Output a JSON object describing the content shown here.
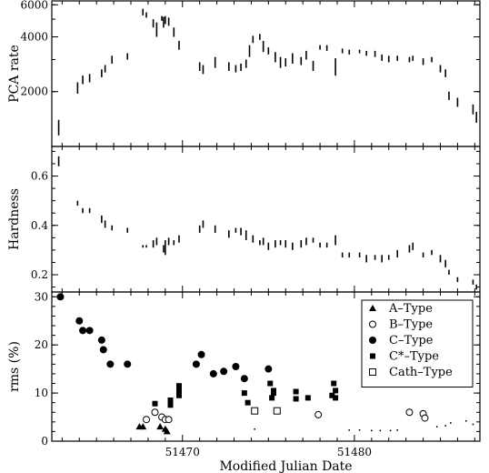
{
  "chart_data": [
    {
      "type": "scatter",
      "panel": "top",
      "ylabel": "PCA rate",
      "ylim": [
        1000,
        6300
      ],
      "yscale": "log",
      "yticks": [
        {
          "value": 2000,
          "label": "2000"
        },
        {
          "value": 4000,
          "label": "4000"
        },
        {
          "value": 6000,
          "label": "6000"
        }
      ],
      "xlim": [
        51462.4,
        51487.3
      ],
      "series": [
        {
          "marker": "vertical-segment",
          "segments": [
            [
              51462.8,
              1150,
              1400
            ],
            [
              51463.9,
              1950,
              2250
            ],
            [
              51464.2,
              2200,
              2450
            ],
            [
              51464.6,
              2250,
              2500
            ],
            [
              51465.3,
              2400,
              2650
            ],
            [
              51465.5,
              2550,
              2800
            ],
            [
              51465.9,
              2850,
              3150
            ],
            [
              51466.8,
              3000,
              3250
            ],
            [
              51467.7,
              5250,
              5700
            ],
            [
              51467.9,
              5100,
              5450
            ],
            [
              51468.3,
              4500,
              5000
            ],
            [
              51468.5,
              4000,
              4800
            ],
            [
              51468.8,
              4900,
              5200
            ],
            [
              51468.9,
              4500,
              5150
            ],
            [
              51469.0,
              4700,
              5200
            ],
            [
              51469.2,
              4600,
              5100
            ],
            [
              51469.5,
              4000,
              4500
            ],
            [
              51469.8,
              3400,
              3800
            ],
            [
              51471.0,
              2600,
              2900
            ],
            [
              51471.2,
              2500,
              2800
            ],
            [
              51471.9,
              2700,
              3100
            ],
            [
              51472.7,
              2600,
              2900
            ],
            [
              51473.1,
              2550,
              2800
            ],
            [
              51473.4,
              2600,
              2850
            ],
            [
              51473.7,
              2700,
              3000
            ],
            [
              51473.9,
              3100,
              3600
            ],
            [
              51474.1,
              3700,
              4050
            ],
            [
              51474.5,
              3850,
              4150
            ],
            [
              51474.7,
              3300,
              3800
            ],
            [
              51475.0,
              3200,
              3500
            ],
            [
              51475.4,
              2900,
              3300
            ],
            [
              51475.7,
              2700,
              3100
            ],
            [
              51476.0,
              2750,
              3050
            ],
            [
              51476.4,
              2850,
              3250
            ],
            [
              51476.9,
              2800,
              3100
            ],
            [
              51477.2,
              3000,
              3350
            ],
            [
              51477.6,
              2600,
              2950
            ],
            [
              51478.0,
              3400,
              3600
            ],
            [
              51478.4,
              3350,
              3600
            ],
            [
              51478.9,
              2450,
              3050
            ],
            [
              51479.3,
              3250,
              3450
            ],
            [
              51479.7,
              3200,
              3400
            ],
            [
              51480.3,
              3250,
              3400
            ],
            [
              51480.7,
              3150,
              3350
            ],
            [
              51481.2,
              3100,
              3350
            ],
            [
              51481.6,
              2950,
              3200
            ],
            [
              51482.0,
              2900,
              3150
            ],
            [
              51482.5,
              2950,
              3150
            ],
            [
              51483.2,
              2900,
              3100
            ],
            [
              51483.4,
              2950,
              3150
            ],
            [
              51484.0,
              2800,
              3050
            ],
            [
              51484.5,
              2900,
              3100
            ],
            [
              51485.0,
              2550,
              2800
            ],
            [
              51485.3,
              2400,
              2650
            ],
            [
              51485.5,
              1800,
              2000
            ],
            [
              51486.0,
              1650,
              1850
            ],
            [
              51486.9,
              1500,
              1700
            ],
            [
              51487.1,
              1350,
              1550
            ]
          ]
        }
      ]
    },
    {
      "type": "scatter",
      "panel": "middle",
      "ylabel": "Hardness",
      "ylim": [
        0.13,
        0.72
      ],
      "yticks": [
        {
          "value": 0.2,
          "label": "0.2"
        },
        {
          "value": 0.4,
          "label": "0.4"
        },
        {
          "value": 0.6,
          "label": "0.6"
        }
      ],
      "xlim": [
        51462.4,
        51487.3
      ],
      "series": [
        {
          "marker": "vertical-segment",
          "segments": [
            [
              51462.8,
              0.64,
              0.68
            ],
            [
              51463.9,
              0.48,
              0.5
            ],
            [
              51464.2,
              0.45,
              0.47
            ],
            [
              51464.6,
              0.45,
              0.47
            ],
            [
              51465.3,
              0.41,
              0.44
            ],
            [
              51465.5,
              0.39,
              0.42
            ],
            [
              51465.9,
              0.38,
              0.4
            ],
            [
              51466.8,
              0.37,
              0.39
            ],
            [
              51467.7,
              0.31,
              0.32
            ],
            [
              51467.9,
              0.31,
              0.32
            ],
            [
              51468.3,
              0.31,
              0.34
            ],
            [
              51468.5,
              0.32,
              0.35
            ],
            [
              51468.9,
              0.29,
              0.32
            ],
            [
              51469.0,
              0.28,
              0.34
            ],
            [
              51469.2,
              0.32,
              0.35
            ],
            [
              51469.5,
              0.32,
              0.34
            ],
            [
              51469.8,
              0.33,
              0.36
            ],
            [
              51471.0,
              0.37,
              0.4
            ],
            [
              51471.2,
              0.39,
              0.42
            ],
            [
              51471.9,
              0.37,
              0.4
            ],
            [
              51472.7,
              0.35,
              0.38
            ],
            [
              51473.1,
              0.37,
              0.39
            ],
            [
              51473.4,
              0.36,
              0.39
            ],
            [
              51473.7,
              0.34,
              0.38
            ],
            [
              51474.1,
              0.33,
              0.36
            ],
            [
              51474.5,
              0.32,
              0.34
            ],
            [
              51474.7,
              0.32,
              0.35
            ],
            [
              51475.0,
              0.3,
              0.33
            ],
            [
              51475.4,
              0.31,
              0.34
            ],
            [
              51475.7,
              0.32,
              0.34
            ],
            [
              51476.0,
              0.31,
              0.34
            ],
            [
              51476.4,
              0.3,
              0.33
            ],
            [
              51476.9,
              0.31,
              0.34
            ],
            [
              51477.2,
              0.32,
              0.35
            ],
            [
              51477.6,
              0.33,
              0.35
            ],
            [
              51478.0,
              0.31,
              0.33
            ],
            [
              51478.4,
              0.31,
              0.33
            ],
            [
              51478.9,
              0.32,
              0.36
            ],
            [
              51479.3,
              0.27,
              0.29
            ],
            [
              51479.7,
              0.27,
              0.29
            ],
            [
              51480.3,
              0.27,
              0.29
            ],
            [
              51480.7,
              0.25,
              0.28
            ],
            [
              51481.2,
              0.26,
              0.28
            ],
            [
              51481.6,
              0.25,
              0.28
            ],
            [
              51482.0,
              0.26,
              0.28
            ],
            [
              51482.5,
              0.27,
              0.3
            ],
            [
              51483.2,
              0.29,
              0.32
            ],
            [
              51483.4,
              0.3,
              0.33
            ],
            [
              51484.0,
              0.27,
              0.29
            ],
            [
              51484.5,
              0.28,
              0.3
            ],
            [
              51485.0,
              0.25,
              0.28
            ],
            [
              51485.3,
              0.23,
              0.26
            ],
            [
              51485.5,
              0.2,
              0.22
            ],
            [
              51486.0,
              0.17,
              0.19
            ],
            [
              51486.9,
              0.16,
              0.18
            ],
            [
              51487.1,
              0.14,
              0.16
            ]
          ]
        }
      ]
    },
    {
      "type": "scatter",
      "panel": "bottom",
      "ylabel": "rms (%)",
      "xlabel": "Modified Julian Date",
      "ylim": [
        0,
        31
      ],
      "yticks": [
        {
          "value": 0,
          "label": "0"
        },
        {
          "value": 10,
          "label": "10"
        },
        {
          "value": 20,
          "label": "20"
        },
        {
          "value": 30,
          "label": "30"
        }
      ],
      "xlim": [
        51462.4,
        51487.3
      ],
      "xticks": [
        {
          "value": 51470,
          "label": "51470"
        },
        {
          "value": 51480,
          "label": "51480"
        }
      ],
      "legend": "top-right",
      "series": [
        {
          "name": "A–Type",
          "marker": "triangle-filled",
          "points": [
            [
              51467.5,
              3.0
            ],
            [
              51467.7,
              3.0
            ],
            [
              51468.7,
              3.0
            ],
            [
              51469.0,
              2.5
            ],
            [
              51469.1,
              2.0
            ]
          ]
        },
        {
          "name": "B–Type",
          "marker": "circle-open",
          "points": [
            [
              51467.9,
              4.5
            ],
            [
              51468.4,
              6.0
            ],
            [
              51468.8,
              5.0
            ],
            [
              51469.0,
              4.5
            ],
            [
              51469.2,
              4.5
            ],
            [
              51477.9,
              5.5
            ],
            [
              51483.2,
              6.0
            ],
            [
              51484.0,
              5.7
            ],
            [
              51484.1,
              4.8
            ]
          ]
        },
        {
          "name": "C–Type",
          "marker": "circle-filled",
          "points": [
            [
              51462.9,
              30.0
            ],
            [
              51464.0,
              25.0
            ],
            [
              51464.2,
              23.0
            ],
            [
              51464.6,
              23.0
            ],
            [
              51465.3,
              21.0
            ],
            [
              51465.4,
              19.0
            ],
            [
              51465.8,
              16.0
            ],
            [
              51466.8,
              16.0
            ],
            [
              51470.8,
              16.0
            ],
            [
              51471.1,
              18.0
            ],
            [
              51471.8,
              14.0
            ],
            [
              51472.4,
              14.5
            ],
            [
              51473.1,
              15.5
            ],
            [
              51473.6,
              13.0
            ],
            [
              51475.0,
              15.0
            ]
          ]
        },
        {
          "name": "C*–Type",
          "marker": "square-filled",
          "points": [
            [
              51468.4,
              7.8
            ],
            [
              51469.3,
              7.5
            ],
            [
              51469.3,
              8.5
            ],
            [
              51469.8,
              9.5
            ],
            [
              51469.8,
              11.5
            ],
            [
              51469.8,
              10.5
            ],
            [
              51473.6,
              10.0
            ],
            [
              51473.8,
              8.0
            ],
            [
              51475.1,
              12.0
            ],
            [
              51475.3,
              10.5
            ],
            [
              51475.3,
              10.0
            ],
            [
              51475.2,
              9.0
            ],
            [
              51476.6,
              8.8
            ],
            [
              51476.6,
              10.3
            ],
            [
              51477.3,
              9.0
            ],
            [
              51478.8,
              12.0
            ],
            [
              51478.9,
              10.5
            ],
            [
              51478.7,
              9.5
            ],
            [
              51478.9,
              9.0
            ]
          ]
        },
        {
          "name": "Cath–Type",
          "marker": "square-open",
          "points": [
            [
              51474.2,
              6.3
            ],
            [
              51475.5,
              6.3
            ]
          ]
        },
        {
          "name": "",
          "marker": "small-dot",
          "points": [
            [
              51474.2,
              2.5
            ],
            [
              51479.7,
              2.3
            ],
            [
              51480.3,
              2.3
            ],
            [
              51481.0,
              2.2
            ],
            [
              51481.5,
              2.2
            ],
            [
              51482.1,
              2.2
            ],
            [
              51482.5,
              2.3
            ],
            [
              51484.8,
              3.0
            ],
            [
              51485.3,
              3.2
            ],
            [
              51485.6,
              3.8
            ],
            [
              51486.5,
              4.2
            ],
            [
              51486.9,
              3.5
            ]
          ]
        }
      ]
    }
  ]
}
